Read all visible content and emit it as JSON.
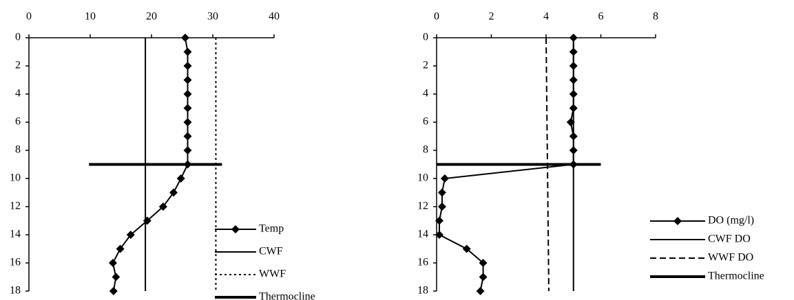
{
  "chart_data": [
    {
      "type": "line",
      "x_ticks": [
        0,
        10,
        20,
        30,
        40
      ],
      "y_ticks": [
        0,
        2,
        4,
        6,
        8,
        10,
        12,
        14,
        16,
        18
      ],
      "xlim": [
        0,
        40
      ],
      "ylim": [
        0,
        18
      ],
      "y_inverted": true,
      "legend_position": "bottom-right",
      "series": [
        {
          "name": "Temp",
          "style": "line-diamond",
          "points": [
            {
              "x": 25.5,
              "y": 0
            },
            {
              "x": 25.9,
              "y": 1
            },
            {
              "x": 25.9,
              "y": 2
            },
            {
              "x": 25.9,
              "y": 3
            },
            {
              "x": 25.9,
              "y": 4
            },
            {
              "x": 25.9,
              "y": 5
            },
            {
              "x": 25.9,
              "y": 6
            },
            {
              "x": 25.9,
              "y": 7
            },
            {
              "x": 25.9,
              "y": 8
            },
            {
              "x": 25.9,
              "y": 9
            },
            {
              "x": 24.8,
              "y": 10
            },
            {
              "x": 23.6,
              "y": 11
            },
            {
              "x": 21.9,
              "y": 12
            },
            {
              "x": 19.3,
              "y": 13
            },
            {
              "x": 16.6,
              "y": 14
            },
            {
              "x": 14.9,
              "y": 15
            },
            {
              "x": 13.7,
              "y": 16
            },
            {
              "x": 14.2,
              "y": 17
            },
            {
              "x": 13.8,
              "y": 18
            }
          ]
        },
        {
          "name": "CWF",
          "style": "solid",
          "points": [
            {
              "x": 19,
              "y": 0
            },
            {
              "x": 19,
              "y": 18
            }
          ]
        },
        {
          "name": "WWF",
          "style": "dotted",
          "points": [
            {
              "x": 30.5,
              "y": 0
            },
            {
              "x": 30.5,
              "y": 18
            }
          ]
        },
        {
          "name": "Thermocline",
          "style": "thick",
          "points": [
            {
              "x": 9.8,
              "y": 9
            },
            {
              "x": 31.5,
              "y": 9
            }
          ]
        }
      ]
    },
    {
      "type": "line",
      "x_ticks": [
        0,
        2,
        4,
        6,
        8
      ],
      "y_ticks": [
        0,
        2,
        4,
        6,
        8,
        10,
        12,
        14,
        16,
        18
      ],
      "xlim": [
        0,
        8
      ],
      "ylim": [
        0,
        18
      ],
      "y_inverted": true,
      "legend_position": "bottom-right",
      "series": [
        {
          "name": "DO (mg/l)",
          "style": "line-diamond",
          "points": [
            {
              "x": 5.0,
              "y": 0
            },
            {
              "x": 5.0,
              "y": 1
            },
            {
              "x": 5.0,
              "y": 2
            },
            {
              "x": 5.0,
              "y": 3
            },
            {
              "x": 5.0,
              "y": 4
            },
            {
              "x": 5.0,
              "y": 5
            },
            {
              "x": 4.9,
              "y": 6
            },
            {
              "x": 5.0,
              "y": 7
            },
            {
              "x": 5.0,
              "y": 8
            },
            {
              "x": 5.0,
              "y": 9
            },
            {
              "x": 0.3,
              "y": 10
            },
            {
              "x": 0.2,
              "y": 11
            },
            {
              "x": 0.2,
              "y": 12
            },
            {
              "x": 0.1,
              "y": 13
            },
            {
              "x": 0.1,
              "y": 14
            },
            {
              "x": 1.1,
              "y": 15
            },
            {
              "x": 1.7,
              "y": 16
            },
            {
              "x": 1.7,
              "y": 17
            },
            {
              "x": 1.6,
              "y": 18
            }
          ]
        },
        {
          "name": "CWF DO",
          "style": "solid",
          "points": [
            {
              "x": 5.0,
              "y": 0
            },
            {
              "x": 5.0,
              "y": 18
            }
          ]
        },
        {
          "name": "WWF DO",
          "style": "dashed",
          "points": [
            {
              "x": 4.0,
              "y": 0
            },
            {
              "x": 4.1,
              "y": 18
            }
          ]
        },
        {
          "name": "Thermocline",
          "style": "thick",
          "points": [
            {
              "x": 0,
              "y": 9
            },
            {
              "x": 6.0,
              "y": 9
            }
          ]
        }
      ]
    }
  ]
}
